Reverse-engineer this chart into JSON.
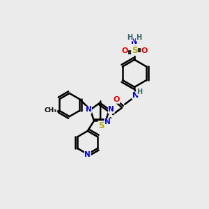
{
  "bg_color": "#ebebeb",
  "atom_colors": {
    "C": "#000000",
    "N": "#0000cc",
    "O": "#dd0000",
    "S": "#aaaa00",
    "H": "#336666"
  },
  "bond_color": "#000000",
  "bond_width": 1.8
}
